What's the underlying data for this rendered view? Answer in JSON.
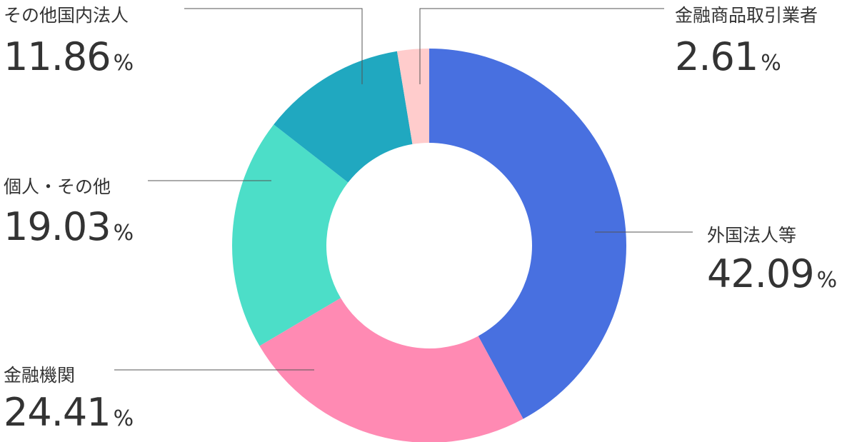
{
  "chart_data": {
    "type": "donut",
    "categories": [
      "外国法人等",
      "金融機関",
      "個人・その他",
      "その他国内法人",
      "金融商品取引業者"
    ],
    "values": [
      42.09,
      24.41,
      19.03,
      11.86,
      2.61
    ],
    "unit": "%",
    "colors": [
      "#4870e0",
      "#ff8ab3",
      "#4cdec8",
      "#20a8c0",
      "#ffcccc"
    ]
  }
}
